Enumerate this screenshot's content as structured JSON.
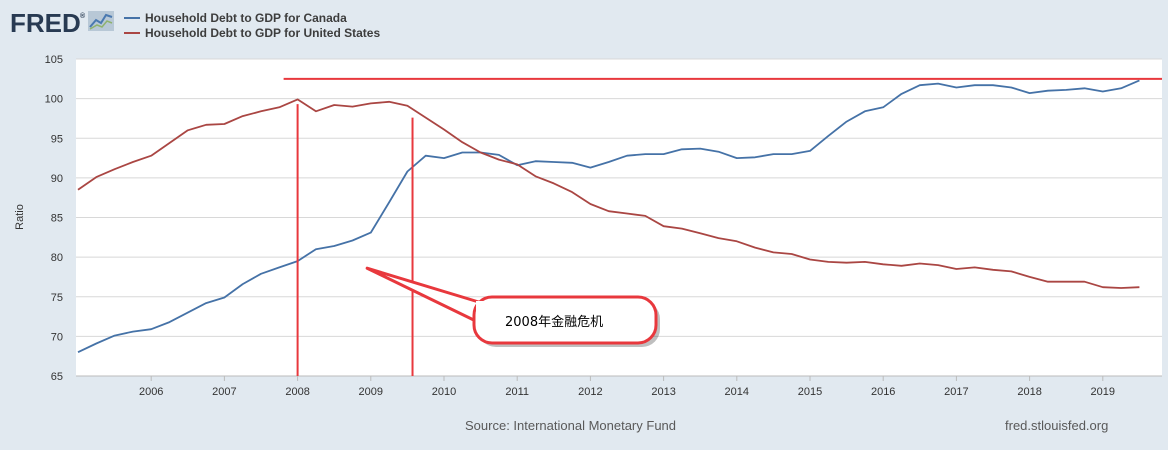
{
  "brand": {
    "logo_text": "FRED",
    "logo_mark": "®"
  },
  "colors": {
    "canada": "#4572a7",
    "united_states": "#aa4643",
    "annotation": "#e8383d",
    "grid": "#d8d8d8",
    "plot_bg": "#ffffff",
    "page_bg": "#e1e9f0"
  },
  "footer": {
    "source": "Source: International Monetary Fund",
    "site": "fred.stlouisfed.org"
  },
  "annotation": {
    "label": "2008年金融危机"
  },
  "chart_data": {
    "type": "line",
    "title": "",
    "ylabel": "Ratio",
    "xlabel": "",
    "ylim": [
      65,
      105
    ],
    "xlim": [
      2005.0,
      2019.5
    ],
    "yticks": [
      65,
      70,
      75,
      80,
      85,
      90,
      95,
      100,
      105
    ],
    "xticks": [
      "2006",
      "2007",
      "2008",
      "2009",
      "2010",
      "2011",
      "2012",
      "2013",
      "2014",
      "2015",
      "2016",
      "2017",
      "2018",
      "2019"
    ],
    "legend": "top-left",
    "grid": true,
    "series": [
      {
        "name": "Household Debt to GDP for Canada",
        "color": "#4572a7",
        "points": [
          [
            2005.0,
            68.0
          ],
          [
            2005.25,
            69.1
          ],
          [
            2005.5,
            70.1
          ],
          [
            2005.75,
            70.6
          ],
          [
            2006.0,
            70.9
          ],
          [
            2006.25,
            71.8
          ],
          [
            2006.5,
            73.0
          ],
          [
            2006.75,
            74.2
          ],
          [
            2007.0,
            74.9
          ],
          [
            2007.25,
            76.6
          ],
          [
            2007.5,
            77.9
          ],
          [
            2007.75,
            78.7
          ],
          [
            2008.0,
            79.5
          ],
          [
            2008.25,
            81.0
          ],
          [
            2008.5,
            81.4
          ],
          [
            2008.75,
            82.1
          ],
          [
            2009.0,
            83.1
          ],
          [
            2009.25,
            86.9
          ],
          [
            2009.5,
            90.8
          ],
          [
            2009.75,
            92.8
          ],
          [
            2010.0,
            92.5
          ],
          [
            2010.25,
            93.2
          ],
          [
            2010.5,
            93.2
          ],
          [
            2010.75,
            92.9
          ],
          [
            2011.0,
            91.6
          ],
          [
            2011.25,
            92.1
          ],
          [
            2011.5,
            92.0
          ],
          [
            2011.75,
            91.9
          ],
          [
            2012.0,
            91.3
          ],
          [
            2012.25,
            92.0
          ],
          [
            2012.5,
            92.8
          ],
          [
            2012.75,
            93.0
          ],
          [
            2013.0,
            93.0
          ],
          [
            2013.25,
            93.6
          ],
          [
            2013.5,
            93.7
          ],
          [
            2013.75,
            93.3
          ],
          [
            2014.0,
            92.5
          ],
          [
            2014.25,
            92.6
          ],
          [
            2014.5,
            93.0
          ],
          [
            2014.75,
            93.0
          ],
          [
            2015.0,
            93.4
          ],
          [
            2015.25,
            95.3
          ],
          [
            2015.5,
            97.1
          ],
          [
            2015.75,
            98.4
          ],
          [
            2016.0,
            98.9
          ],
          [
            2016.25,
            100.6
          ],
          [
            2016.5,
            101.7
          ],
          [
            2016.75,
            101.9
          ],
          [
            2017.0,
            101.4
          ],
          [
            2017.25,
            101.7
          ],
          [
            2017.5,
            101.7
          ],
          [
            2017.75,
            101.4
          ],
          [
            2018.0,
            100.7
          ],
          [
            2018.25,
            101.0
          ],
          [
            2018.5,
            101.1
          ],
          [
            2018.75,
            101.3
          ],
          [
            2019.0,
            100.9
          ],
          [
            2019.25,
            101.3
          ],
          [
            2019.5,
            102.3
          ]
        ]
      },
      {
        "name": "Household Debt to GDP for United States",
        "color": "#aa4643",
        "points": [
          [
            2005.0,
            88.5
          ],
          [
            2005.25,
            90.1
          ],
          [
            2005.5,
            91.1
          ],
          [
            2005.75,
            92.0
          ],
          [
            2006.0,
            92.8
          ],
          [
            2006.25,
            94.4
          ],
          [
            2006.5,
            96.0
          ],
          [
            2006.75,
            96.7
          ],
          [
            2007.0,
            96.8
          ],
          [
            2007.25,
            97.8
          ],
          [
            2007.5,
            98.4
          ],
          [
            2007.75,
            98.9
          ],
          [
            2008.0,
            99.9
          ],
          [
            2008.25,
            98.4
          ],
          [
            2008.5,
            99.2
          ],
          [
            2008.75,
            99.0
          ],
          [
            2009.0,
            99.4
          ],
          [
            2009.25,
            99.6
          ],
          [
            2009.5,
            99.1
          ],
          [
            2009.75,
            97.6
          ],
          [
            2010.0,
            96.1
          ],
          [
            2010.25,
            94.5
          ],
          [
            2010.5,
            93.2
          ],
          [
            2010.75,
            92.3
          ],
          [
            2011.0,
            91.7
          ],
          [
            2011.25,
            90.2
          ],
          [
            2011.5,
            89.3
          ],
          [
            2011.75,
            88.2
          ],
          [
            2012.0,
            86.7
          ],
          [
            2012.25,
            85.8
          ],
          [
            2012.5,
            85.5
          ],
          [
            2012.75,
            85.2
          ],
          [
            2013.0,
            83.9
          ],
          [
            2013.25,
            83.6
          ],
          [
            2013.5,
            83.0
          ],
          [
            2013.75,
            82.4
          ],
          [
            2014.0,
            82.0
          ],
          [
            2014.25,
            81.2
          ],
          [
            2014.5,
            80.6
          ],
          [
            2014.75,
            80.4
          ],
          [
            2015.0,
            79.7
          ],
          [
            2015.25,
            79.4
          ],
          [
            2015.5,
            79.3
          ],
          [
            2015.75,
            79.4
          ],
          [
            2016.0,
            79.1
          ],
          [
            2016.25,
            78.9
          ],
          [
            2016.5,
            79.2
          ],
          [
            2016.75,
            79.0
          ],
          [
            2017.0,
            78.5
          ],
          [
            2017.25,
            78.7
          ],
          [
            2017.5,
            78.4
          ],
          [
            2017.75,
            78.2
          ],
          [
            2018.0,
            77.5
          ],
          [
            2018.25,
            76.9
          ],
          [
            2018.5,
            76.9
          ],
          [
            2018.75,
            76.9
          ],
          [
            2019.0,
            76.2
          ],
          [
            2019.25,
            76.1
          ],
          [
            2019.5,
            76.2
          ]
        ]
      }
    ],
    "annotations": {
      "vertical_lines": [
        {
          "x": 2008.0,
          "y_from": 65.0,
          "y_to": 99.3
        },
        {
          "x": 2009.57,
          "y_from": 65.0,
          "y_to": 97.6
        }
      ],
      "horizontal_line": {
        "y": 102.5,
        "x_from": 2007.85,
        "x_to": 2019.5
      },
      "callout": {
        "point_x": 2008.95,
        "point_y": 78.6,
        "label": "2008年金融危机"
      }
    }
  }
}
